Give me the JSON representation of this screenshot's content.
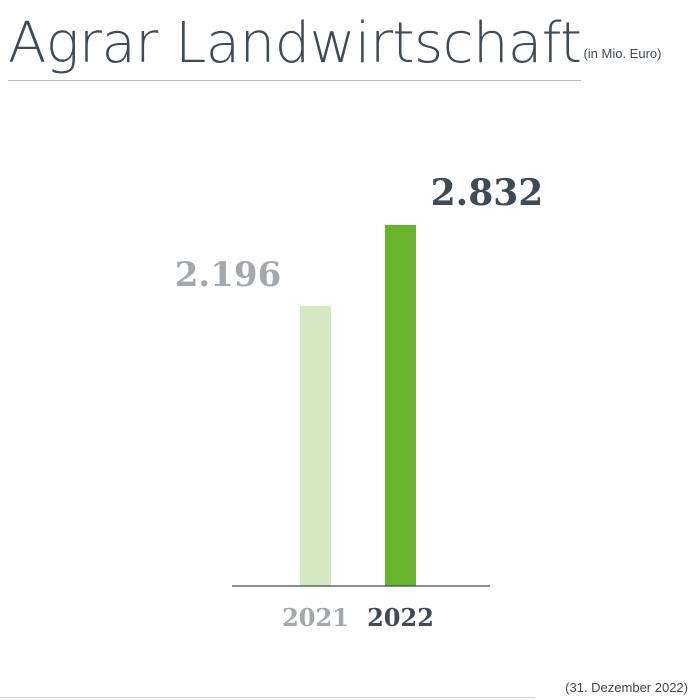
{
  "header": {
    "title": "Agrar Landwirtschaft",
    "unit": "(in Mio. Euro)"
  },
  "footer": {
    "date_note": "(31. Dezember 2022)"
  },
  "colors": {
    "bar_2021": "#d4e8c2",
    "bar_2022": "#6ab42d",
    "label_2021": "#a3a8ad",
    "label_2022": "#3e4a55",
    "axis": "#3e4a55"
  },
  "chart_data": {
    "type": "bar",
    "title": "Agrar Landwirtschaft",
    "categories": [
      "2021",
      "2022"
    ],
    "values": [
      2196,
      2832
    ],
    "value_labels": [
      "2.196",
      "2.832"
    ],
    "ylim": [
      0,
      3400
    ],
    "grid": false,
    "legend": "none"
  }
}
